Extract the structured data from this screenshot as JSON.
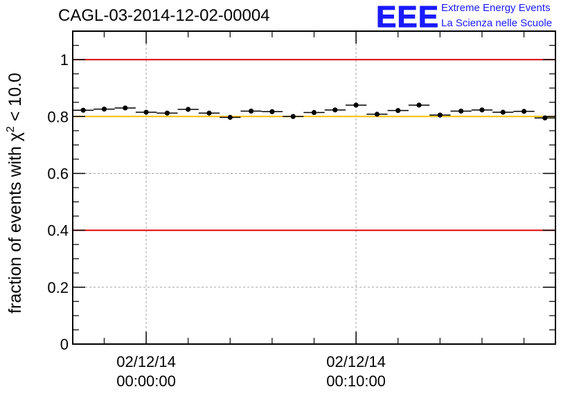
{
  "header": {
    "title": "CAGL-03-2014-12-02-00004",
    "logo_mark": "EEE",
    "logo_line1": "Extreme Energy Events",
    "logo_line2": "La Scienza nelle Scuole"
  },
  "colors": {
    "reference_line": "#e00000",
    "threshold_line": "#ffc000",
    "logo": "#1a1aff",
    "markers": "#000000",
    "grid": "#a0a0a0"
  },
  "chart_data": {
    "type": "scatter",
    "title": "CAGL-03-2014-12-02-00004",
    "ylabel_prefix": "fraction of events with ",
    "ylabel_symbol": "χ",
    "ylabel_sup": "2",
    "ylabel_suffix": " < 10.0",
    "ylim": [
      0,
      1.1
    ],
    "xlim_minutes": [
      -3.5,
      19.5
    ],
    "yticks": [
      {
        "value": 0,
        "label": "0"
      },
      {
        "value": 0.2,
        "label": "0.2"
      },
      {
        "value": 0.4,
        "label": "0.4"
      },
      {
        "value": 0.6,
        "label": "0.6"
      },
      {
        "value": 0.8,
        "label": "0.8"
      },
      {
        "value": 1,
        "label": "1"
      }
    ],
    "xticks": [
      {
        "minute": 0,
        "date": "02/12/14",
        "time": "00:00:00"
      },
      {
        "minute": 10,
        "date": "02/12/14",
        "time": "00:10:00"
      }
    ],
    "grid": true,
    "reference_lines": [
      {
        "y": 1.0,
        "color": "red"
      },
      {
        "y": 0.4,
        "color": "red"
      },
      {
        "y": 0.8,
        "color": "orange"
      }
    ],
    "x_minutes": [
      -3,
      -2,
      -1,
      0,
      1,
      2,
      3,
      4,
      5,
      6,
      7,
      8,
      9,
      10,
      11,
      12,
      13,
      14,
      15,
      16,
      17,
      18,
      19
    ],
    "values": [
      0.822,
      0.826,
      0.83,
      0.815,
      0.812,
      0.825,
      0.812,
      0.797,
      0.819,
      0.817,
      0.8,
      0.814,
      0.823,
      0.84,
      0.808,
      0.821,
      0.84,
      0.805,
      0.819,
      0.823,
      0.815,
      0.818,
      0.795
    ]
  }
}
